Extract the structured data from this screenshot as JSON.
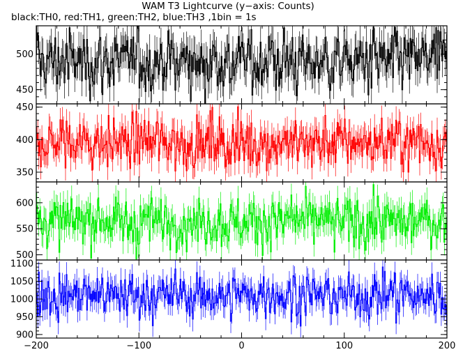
{
  "title": "WAM T3 Lightcurve (y−axis: Counts)",
  "subtitle": "black:TH0, red:TH1, green:TH2, blue:TH3 ,1bin = 1s",
  "chart_data": {
    "type": "line",
    "x_range": [
      -200,
      200
    ],
    "x_ticks": [
      -200,
      -100,
      0,
      100,
      200
    ],
    "x_tick_labels": [
      "−200",
      "−100",
      "0",
      "100",
      "200"
    ],
    "bin_size_s": 1,
    "panels": [
      {
        "name": "TH0",
        "color": "#000000",
        "ylim": [
          430,
          540
        ],
        "yticks": [
          450,
          500
        ],
        "ytick_labels": [
          "450",
          "500"
        ],
        "mean": 490,
        "sd": 22,
        "min": 430,
        "max": 540
      },
      {
        "name": "TH1",
        "color": "#ff0000",
        "ylim": [
          335,
          455
        ],
        "yticks": [
          350,
          400,
          450
        ],
        "ytick_labels": [
          "350",
          "400",
          "450"
        ],
        "mean": 395,
        "sd": 20,
        "min": 330,
        "max": 455
      },
      {
        "name": "TH2",
        "color": "#00ee00",
        "ylim": [
          490,
          640
        ],
        "yticks": [
          500,
          550,
          600
        ],
        "ytick_labels": [
          "500",
          "550",
          "600"
        ],
        "mean": 563,
        "sd": 24,
        "min": 490,
        "max": 635
      },
      {
        "name": "TH3",
        "color": "#0000ff",
        "ylim": [
          890,
          1110
        ],
        "yticks": [
          900,
          950,
          1000,
          1050,
          1100
        ],
        "ytick_labels": [
          "900",
          "950",
          "1000",
          "1050",
          "1100"
        ],
        "mean": 1010,
        "sd": 32,
        "min": 890,
        "max": 1110
      }
    ]
  }
}
